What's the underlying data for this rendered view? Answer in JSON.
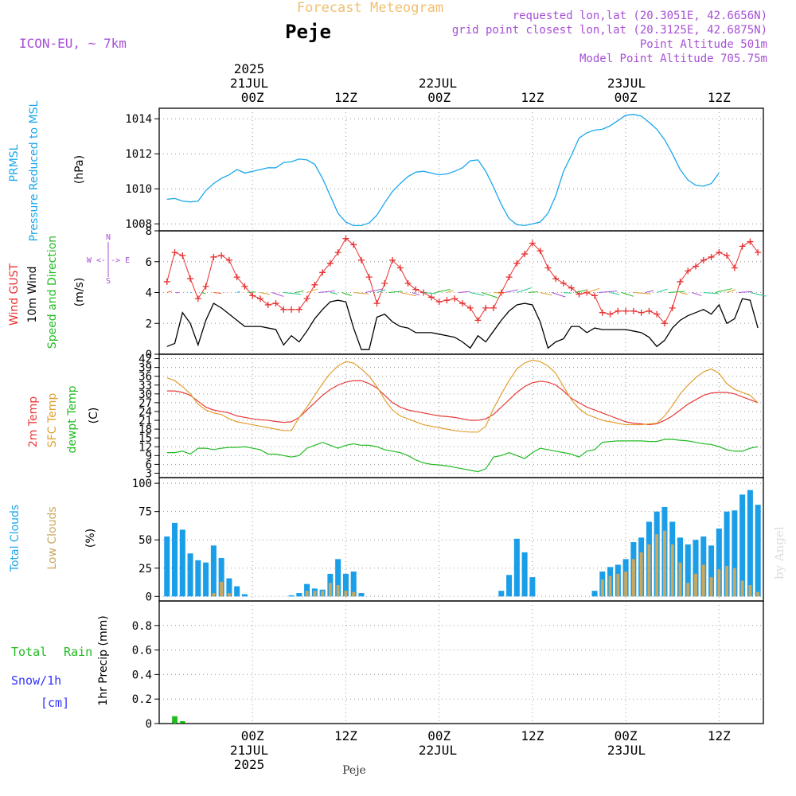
{
  "header": {
    "super_title": "Forecast Meteogram",
    "location": "Peje",
    "model": "ICON-EU, ~ 7km",
    "requested": "requested lon,lat (20.3051E, 42.6656N)",
    "grid_point": "grid point closest lon,lat (20.3125E, 42.6875N)",
    "point_altitude": "Point Altitude 501m",
    "model_altitude": "Model Point Altitude 705.75m",
    "footer_location": "Peje",
    "watermark": "by Angel"
  },
  "time_axis": {
    "ticks": [
      "00Z",
      "12Z",
      "00Z",
      "12Z",
      "00Z",
      "12Z"
    ],
    "tick_hours": [
      0,
      12,
      24,
      36,
      48,
      60
    ],
    "top_dates": [
      {
        "hour": 0,
        "year": "2025",
        "date": "21JUL"
      },
      {
        "hour": 24,
        "date": "22JUL"
      },
      {
        "hour": 48,
        "date": "23JUL"
      }
    ],
    "bottom_dates": [
      {
        "hour": 0,
        "date": "21JUL",
        "year": "2025"
      },
      {
        "hour": 24,
        "date": "22JUL"
      },
      {
        "hour": 48,
        "date": "23JUL"
      }
    ]
  },
  "panel_labels": {
    "p1": [
      "PRMSL",
      "Pressure Reduced to MSL",
      "(hPa)"
    ],
    "p2": [
      "Wind GUST",
      "10m Wind",
      "Speed and Direction",
      "(m/s)"
    ],
    "p2_compass": [
      "N",
      "W <-|-> E",
      "S"
    ],
    "p3": [
      "2m Temp",
      "SFC Temp",
      "dewpt Temp",
      "(C)"
    ],
    "p4": [
      "Total Clouds",
      "Low Clouds",
      "(%)"
    ],
    "p5": [
      "Total",
      "Rain",
      "Snow/1h",
      "[cm]",
      "1hr Precip (mm)"
    ]
  },
  "colors": {
    "pressure": "#1aa7ec",
    "gust": "#e83030",
    "wind10m": "#000000",
    "t2m": "#e83a3a",
    "tsfc": "#e0a030",
    "dewpt": "#22bb22",
    "total_clouds": "#1a9ee8",
    "low_clouds": "#c8a860",
    "rain": "#22bb22",
    "header_purple": "#a64fd6",
    "super_title": "#f0c070",
    "snow": "#3333ff"
  },
  "chart_data": [
    {
      "type": "line",
      "title": "PRMSL",
      "ylabel": "(hPa)",
      "ylim": [
        1007.6,
        1014.6
      ],
      "yticks": [
        1008,
        1010,
        1012,
        1014
      ],
      "x_hours": [
        -11,
        -10,
        -9,
        -8,
        -7,
        -6,
        -5,
        -4,
        -3,
        -2,
        -1,
        0,
        1,
        2,
        3,
        4,
        5,
        6,
        7,
        8,
        9,
        10,
        11,
        12,
        13,
        14,
        15,
        16,
        17,
        18,
        19,
        20,
        21,
        22,
        23,
        24,
        25,
        26,
        27,
        28,
        29,
        30,
        31,
        32,
        33,
        34,
        35,
        36,
        37,
        38,
        39,
        40,
        41,
        42,
        43,
        44,
        45,
        46,
        47,
        48,
        49,
        50,
        51,
        52,
        53,
        54,
        55,
        56,
        57,
        58,
        59,
        60,
        61,
        62,
        63,
        64,
        65
      ],
      "series": [
        {
          "name": "PRMSL",
          "values": [
            1009.4,
            1009.45,
            1009.3,
            1009.25,
            1009.3,
            1009.9,
            1010.3,
            1010.6,
            1010.8,
            1011.1,
            1010.9,
            1011.0,
            1011.1,
            1011.2,
            1011.2,
            1011.5,
            1011.55,
            1011.7,
            1011.65,
            1011.4,
            1010.6,
            1009.6,
            1008.6,
            1008.1,
            1007.9,
            1007.9,
            1008.05,
            1008.5,
            1009.2,
            1009.85,
            1010.3,
            1010.7,
            1010.95,
            1011.0,
            1010.9,
            1010.8,
            1010.85,
            1011.0,
            1011.2,
            1011.6,
            1011.65,
            1011.0,
            1010.1,
            1009.1,
            1008.3,
            1007.95,
            1007.9,
            1008.0,
            1008.1,
            1008.6,
            1009.6,
            1011.0,
            1011.9,
            1012.9,
            1013.2,
            1013.35,
            1013.4,
            1013.6,
            1013.9,
            1014.2,
            1014.25,
            1014.15,
            1013.8,
            1013.4,
            1012.8,
            1012.0,
            1011.1,
            1010.5,
            1010.2,
            1010.15,
            1010.3,
            1010.9
          ]
        }
      ]
    },
    {
      "type": "line",
      "title": "Wind",
      "ylabel": "(m/s)",
      "ylim": [
        0,
        8
      ],
      "yticks": [
        0,
        2,
        4,
        6,
        8
      ],
      "x_hours": [
        -11,
        -10,
        -9,
        -8,
        -7,
        -6,
        -5,
        -4,
        -3,
        -2,
        -1,
        0,
        1,
        2,
        3,
        4,
        5,
        6,
        7,
        8,
        9,
        10,
        11,
        12,
        13,
        14,
        15,
        16,
        17,
        18,
        19,
        20,
        21,
        22,
        23,
        24,
        25,
        26,
        27,
        28,
        29,
        30,
        31,
        32,
        33,
        34,
        35,
        36,
        37,
        38,
        39,
        40,
        41,
        42,
        43,
        44,
        45,
        46,
        47,
        48,
        49,
        50,
        51,
        52,
        53,
        54,
        55,
        56,
        57,
        58,
        59,
        60,
        61,
        62,
        63,
        64,
        65
      ],
      "series": [
        {
          "name": "Wind GUST",
          "values": [
            4.7,
            6.6,
            6.4,
            4.9,
            3.6,
            4.4,
            6.3,
            6.4,
            6.1,
            5.0,
            4.4,
            3.8,
            3.6,
            3.2,
            3.3,
            2.9,
            2.9,
            2.9,
            3.6,
            4.5,
            5.3,
            5.9,
            6.6,
            7.5,
            7.1,
            6.1,
            5.0,
            3.3,
            4.6,
            6.1,
            5.6,
            4.6,
            4.2,
            4.0,
            3.7,
            3.4,
            3.5,
            3.6,
            3.3,
            3.0,
            2.2,
            3.0,
            3.0,
            4.0,
            5.0,
            5.9,
            6.5,
            7.2,
            6.7,
            5.6,
            4.9,
            4.6,
            4.3,
            3.9,
            4.0,
            3.8,
            2.7,
            2.6,
            2.8,
            2.8,
            2.8,
            2.7,
            2.8,
            2.6,
            2.0,
            3.0,
            4.7,
            5.4,
            5.7,
            6.1,
            6.3,
            6.6,
            6.4,
            5.6,
            7.0,
            7.3,
            6.6
          ]
        },
        {
          "name": "10m Wind",
          "values": [
            0.5,
            0.7,
            2.7,
            2.0,
            0.6,
            2.2,
            3.3,
            3.0,
            2.6,
            2.2,
            1.8,
            1.8,
            1.8,
            1.7,
            1.6,
            0.6,
            1.2,
            0.8,
            1.5,
            2.3,
            2.9,
            3.4,
            3.5,
            3.4,
            1.7,
            0.3,
            0.3,
            2.4,
            2.6,
            2.1,
            1.8,
            1.7,
            1.4,
            1.4,
            1.4,
            1.3,
            1.2,
            1.1,
            0.8,
            0.4,
            1.2,
            0.8,
            1.5,
            2.2,
            2.8,
            3.2,
            3.3,
            3.2,
            2.1,
            0.4,
            0.8,
            1.0,
            1.8,
            1.8,
            1.4,
            1.7,
            1.6,
            1.6,
            1.6,
            1.6,
            1.5,
            1.4,
            1.1,
            0.5,
            0.9,
            1.7,
            2.2,
            2.5,
            2.7,
            2.9,
            2.6,
            3.2,
            2.0,
            2.3,
            3.6,
            3.5,
            1.7
          ]
        }
      ]
    },
    {
      "type": "line",
      "title": "Temperature",
      "ylabel": "(C)",
      "ylim": [
        1.5,
        43.5
      ],
      "yticks": [
        3,
        6,
        9,
        12,
        15,
        18,
        21,
        24,
        27,
        30,
        33,
        36,
        39,
        42
      ],
      "x_hours": [
        -11,
        -10,
        -9,
        -8,
        -7,
        -6,
        -5,
        -4,
        -3,
        -2,
        -1,
        0,
        1,
        2,
        3,
        4,
        5,
        6,
        7,
        8,
        9,
        10,
        11,
        12,
        13,
        14,
        15,
        16,
        17,
        18,
        19,
        20,
        21,
        22,
        23,
        24,
        25,
        26,
        27,
        28,
        29,
        30,
        31,
        32,
        33,
        34,
        35,
        36,
        37,
        38,
        39,
        40,
        41,
        42,
        43,
        44,
        45,
        46,
        47,
        48,
        49,
        50,
        51,
        52,
        53,
        54,
        55,
        56,
        57,
        58,
        59,
        60,
        61,
        62,
        63,
        64,
        65
      ],
      "series": [
        {
          "name": "2m Temp",
          "values": [
            31.0,
            31.0,
            30.5,
            29.5,
            27.5,
            25.5,
            24.5,
            24.0,
            23.5,
            22.5,
            22.0,
            21.5,
            21.2,
            21.0,
            20.6,
            20.3,
            20.5,
            22.0,
            24.5,
            27.0,
            29.5,
            31.5,
            33.0,
            34.0,
            34.5,
            34.5,
            33.5,
            32.0,
            29.5,
            27.0,
            25.5,
            24.5,
            24.0,
            23.5,
            23.0,
            22.5,
            22.3,
            22.0,
            21.5,
            21.0,
            21.0,
            21.5,
            23.0,
            25.5,
            28.0,
            30.5,
            32.5,
            33.8,
            34.3,
            34.0,
            33.0,
            31.0,
            28.5,
            27.0,
            25.5,
            24.5,
            23.5,
            22.5,
            21.5,
            20.5,
            20.0,
            19.8,
            19.5,
            19.8,
            21.0,
            22.5,
            24.5,
            26.5,
            28.0,
            29.5,
            30.3,
            30.5,
            30.5,
            30.0,
            29.0,
            28.0,
            27.0
          ]
        },
        {
          "name": "SFC Temp",
          "values": [
            35.5,
            34.5,
            32.5,
            30.0,
            26.5,
            24.5,
            23.5,
            23.0,
            21.5,
            20.5,
            20.0,
            19.5,
            19.0,
            18.5,
            18.0,
            17.5,
            17.5,
            22.0,
            25.5,
            29.5,
            33.5,
            37.0,
            39.5,
            41.0,
            40.5,
            38.5,
            36.0,
            32.5,
            28.0,
            24.5,
            22.5,
            21.5,
            20.5,
            19.5,
            19.0,
            18.5,
            18.0,
            17.5,
            17.2,
            17.0,
            17.0,
            19.0,
            25.0,
            30.0,
            34.5,
            38.5,
            40.5,
            41.5,
            41.0,
            39.5,
            37.0,
            32.5,
            28.0,
            25.0,
            23.0,
            22.0,
            21.0,
            20.5,
            20.0,
            19.5,
            19.5,
            19.5,
            19.8,
            20.0,
            22.5,
            26.0,
            30.0,
            33.0,
            35.5,
            37.5,
            38.5,
            37.0,
            33.5,
            31.5,
            30.5,
            29.5,
            27.0
          ]
        },
        {
          "name": "dewpt Temp",
          "values": [
            10.0,
            10.0,
            10.5,
            9.5,
            11.5,
            11.5,
            11.0,
            11.5,
            11.8,
            11.8,
            12.0,
            11.5,
            11.0,
            9.5,
            9.5,
            9.0,
            8.5,
            9.0,
            11.5,
            12.5,
            13.5,
            12.5,
            11.5,
            12.5,
            13.0,
            12.5,
            12.5,
            12.0,
            11.0,
            10.5,
            10.0,
            9.0,
            7.5,
            6.5,
            6.0,
            5.8,
            5.5,
            5.0,
            4.5,
            4.0,
            3.5,
            4.5,
            8.5,
            9.0,
            10.0,
            9.0,
            8.0,
            10.0,
            11.5,
            11.0,
            10.5,
            10.0,
            9.5,
            8.5,
            10.5,
            11.0,
            13.5,
            13.8,
            14.0,
            14.0,
            14.0,
            14.0,
            13.8,
            13.8,
            14.5,
            14.5,
            14.2,
            14.0,
            13.5,
            13.0,
            12.8,
            12.0,
            11.0,
            10.5,
            10.5,
            11.5,
            12.0
          ]
        }
      ]
    },
    {
      "type": "bar",
      "title": "Clouds",
      "ylabel": "(%)",
      "ylim": [
        -4,
        105
      ],
      "yticks": [
        0,
        25,
        50,
        75,
        100
      ],
      "x_hours": [
        -11,
        -10,
        -9,
        -8,
        -7,
        -6,
        -5,
        -4,
        -3,
        -2,
        -1,
        0,
        1,
        2,
        3,
        4,
        5,
        6,
        7,
        8,
        9,
        10,
        11,
        12,
        13,
        14,
        15,
        16,
        17,
        18,
        19,
        20,
        21,
        22,
        23,
        24,
        25,
        26,
        27,
        28,
        29,
        30,
        31,
        32,
        33,
        34,
        35,
        36,
        37,
        38,
        39,
        40,
        41,
        42,
        43,
        44,
        45,
        46,
        47,
        48,
        49,
        50,
        51,
        52,
        53,
        54,
        55,
        56,
        57,
        58,
        59,
        60,
        61,
        62,
        63,
        64,
        65
      ],
      "series": [
        {
          "name": "Total Clouds",
          "values": [
            53,
            65,
            59,
            38,
            32,
            30,
            45,
            34,
            16,
            9,
            2,
            0,
            0,
            0,
            0,
            0,
            1,
            3,
            11,
            7,
            6,
            20,
            33,
            20,
            22,
            3,
            0,
            0,
            0,
            0,
            0,
            0,
            0,
            0,
            0,
            0,
            0,
            0,
            0,
            0,
            0,
            0,
            0,
            5,
            19,
            51,
            39,
            17,
            0,
            0,
            0,
            0,
            0,
            0,
            0,
            5,
            22,
            26,
            28,
            33,
            48,
            52,
            66,
            75,
            79,
            66,
            52,
            46,
            50,
            53,
            45,
            60,
            75,
            76,
            90,
            94,
            81
          ]
        },
        {
          "name": "Low Clouds",
          "values": [
            0,
            0,
            0,
            0,
            0,
            0,
            3,
            13,
            3,
            0,
            0,
            0,
            0,
            0,
            0,
            0,
            0,
            0,
            5,
            5,
            5,
            12,
            10,
            5,
            4,
            0,
            0,
            0,
            0,
            0,
            0,
            0,
            0,
            0,
            0,
            0,
            0,
            0,
            0,
            0,
            0,
            0,
            0,
            0,
            0,
            0,
            0,
            0,
            0,
            0,
            0,
            0,
            0,
            0,
            0,
            0,
            15,
            18,
            20,
            22,
            33,
            39,
            46,
            55,
            58,
            46,
            30,
            12,
            20,
            28,
            17,
            24,
            27,
            25,
            14,
            10,
            4
          ]
        }
      ]
    },
    {
      "type": "bar",
      "title": "Precipitation",
      "ylabel": "1hr Precip (mm)",
      "ylim": [
        0,
        1.0
      ],
      "yticks": [
        0,
        0.2,
        0.4,
        0.6,
        0.8
      ],
      "x_hours": [
        -10,
        -9
      ],
      "series": [
        {
          "name": "Total Rain",
          "values": [
            0.06,
            0.02
          ]
        }
      ]
    }
  ]
}
